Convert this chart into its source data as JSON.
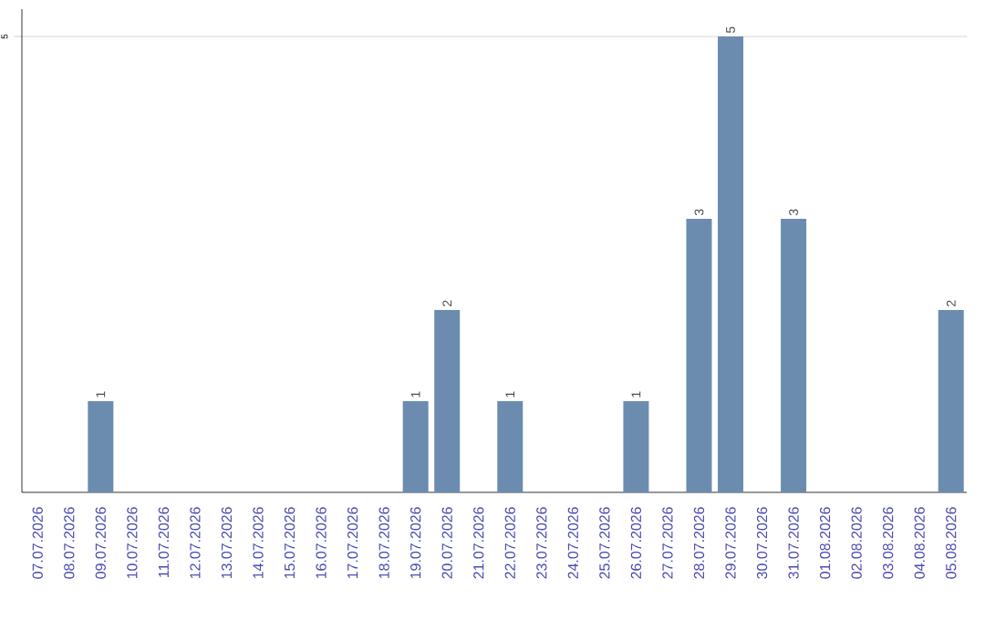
{
  "chart_data": {
    "type": "bar",
    "categories": [
      "07.07.2026",
      "08.07.2026",
      "09.07.2026",
      "10.07.2026",
      "11.07.2026",
      "12.07.2026",
      "13.07.2026",
      "14.07.2026",
      "15.07.2026",
      "16.07.2026",
      "17.07.2026",
      "18.07.2026",
      "19.07.2026",
      "20.07.2026",
      "21.07.2026",
      "22.07.2026",
      "23.07.2026",
      "24.07.2026",
      "25.07.2026",
      "26.07.2026",
      "27.07.2026",
      "28.07.2026",
      "29.07.2026",
      "30.07.2026",
      "31.07.2026",
      "01.08.2026",
      "02.08.2026",
      "03.08.2026",
      "04.08.2026",
      "05.08.2026"
    ],
    "values": [
      null,
      null,
      1,
      null,
      null,
      null,
      null,
      null,
      null,
      null,
      null,
      null,
      1,
      2,
      null,
      1,
      null,
      null,
      null,
      1,
      null,
      3,
      5,
      null,
      3,
      null,
      null,
      null,
      null,
      2
    ],
    "color": "#6b8cae",
    "ylim": [
      0,
      5.3
    ],
    "yticks": [
      5
    ],
    "grid": "y",
    "data_labels": true
  }
}
